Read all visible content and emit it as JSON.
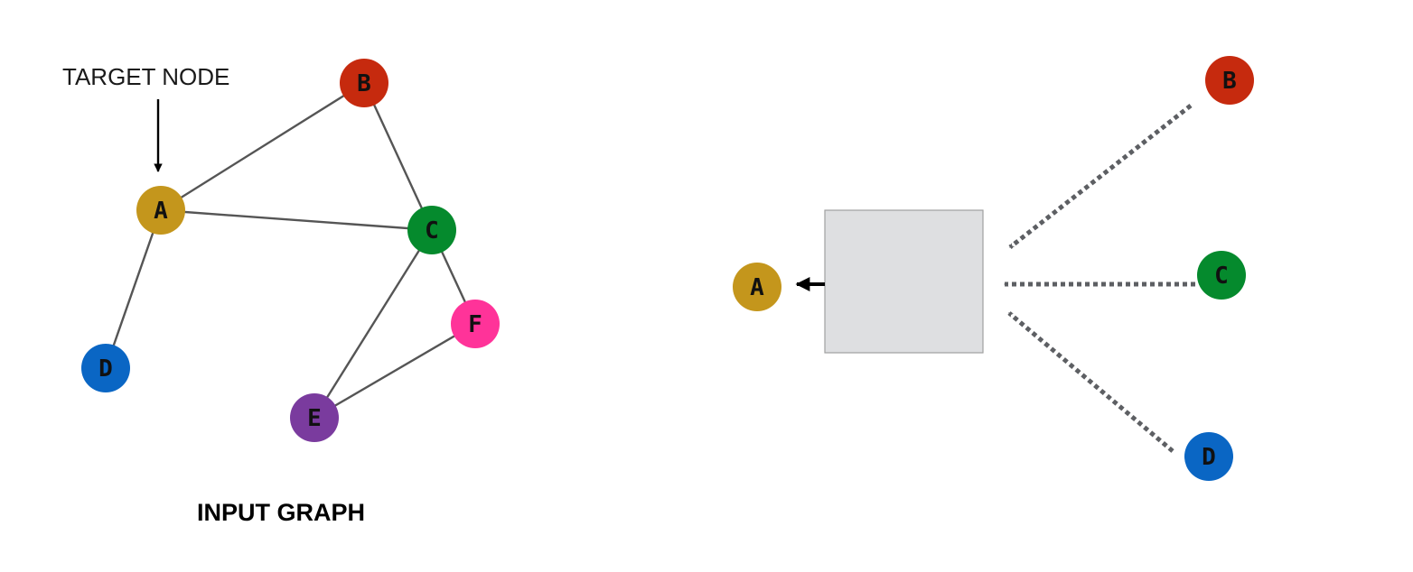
{
  "annotation": {
    "text": "TARGET NODE"
  },
  "caption": {
    "text": "INPUT GRAPH"
  },
  "colors": {
    "A": "#c4961c",
    "B": "#c62a0e",
    "C": "#058a2d",
    "D": "#0a66c4",
    "E": "#7a3b9e",
    "F": "#ff3399",
    "aggregator_fill": "#dedfe1",
    "aggregator_stroke": "#a0a0a0"
  },
  "input_graph": {
    "nodes": [
      {
        "id": "A",
        "label": "A",
        "target": true
      },
      {
        "id": "B",
        "label": "B"
      },
      {
        "id": "C",
        "label": "C"
      },
      {
        "id": "D",
        "label": "D"
      },
      {
        "id": "E",
        "label": "E"
      },
      {
        "id": "F",
        "label": "F"
      }
    ],
    "edges": [
      [
        "A",
        "B"
      ],
      [
        "A",
        "C"
      ],
      [
        "A",
        "D"
      ],
      [
        "B",
        "C"
      ],
      [
        "C",
        "E"
      ],
      [
        "C",
        "F"
      ],
      [
        "E",
        "F"
      ]
    ]
  },
  "aggregation": {
    "target": "A",
    "neighbors": [
      "B",
      "C",
      "D"
    ]
  }
}
